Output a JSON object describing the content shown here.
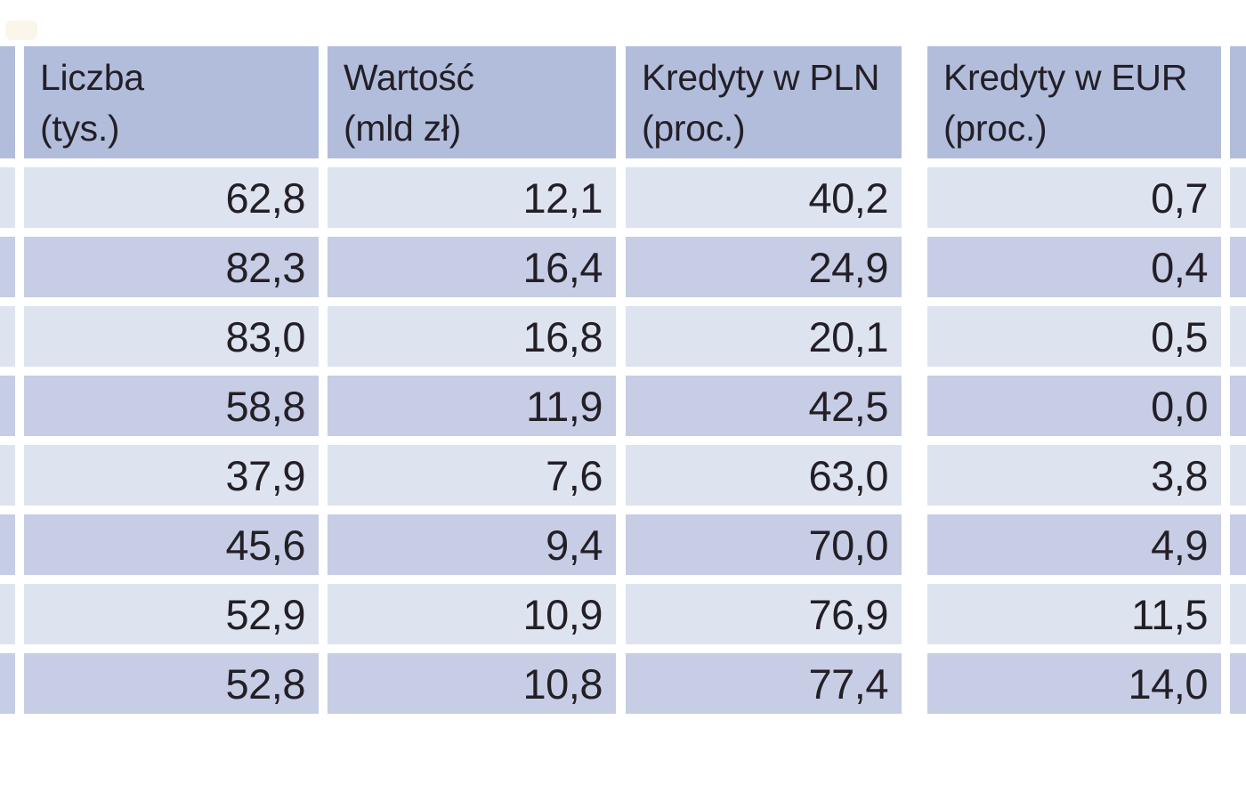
{
  "table": {
    "columns": [
      {
        "line1": "Liczba",
        "line2": "(tys.)"
      },
      {
        "line1": "Wartość",
        "line2": "(mld zł)"
      },
      {
        "line1": "Kredyty w PLN",
        "line2": "(proc.)"
      },
      {
        "line1": "Kredyty w EUR",
        "line2": "(proc.)"
      }
    ],
    "rows": [
      {
        "values": [
          "62,8",
          "12,1",
          "40,2",
          "0,7"
        ]
      },
      {
        "values": [
          "82,3",
          "16,4",
          "24,9",
          "0,4"
        ]
      },
      {
        "values": [
          "83,0",
          "16,8",
          "20,1",
          "0,5"
        ]
      },
      {
        "values": [
          "58,8",
          "11,9",
          "42,5",
          "0,0"
        ]
      },
      {
        "values": [
          "37,9",
          "7,6",
          "63,0",
          "3,8"
        ]
      },
      {
        "values": [
          "45,6",
          "9,4",
          "70,0",
          "4,9"
        ]
      },
      {
        "values": [
          "52,9",
          "10,9",
          "76,9",
          "11,5"
        ]
      },
      {
        "values": [
          "52,8",
          "10,8",
          "77,4",
          "14,0"
        ]
      }
    ]
  },
  "colors": {
    "header_bg": "#b2bddc",
    "row_dark_bg": "#c6cde5",
    "row_light_bg": "#dee3f0",
    "text": "#231f26",
    "page_bg": "#ffffff"
  }
}
